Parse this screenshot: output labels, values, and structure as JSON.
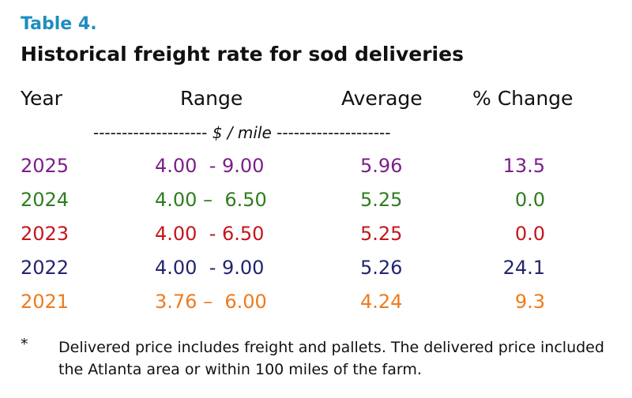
{
  "table": {
    "label": "Table 4.",
    "title": "Historical freight rate for sod deliveries",
    "headers": {
      "year": "Year",
      "range": "Range",
      "average": "Average",
      "change": "% Change"
    },
    "units": {
      "left_dashes": "--------------------",
      "unit": "$ / mile",
      "right_dashes": "--------------------"
    },
    "rows": [
      {
        "year": "2025",
        "range": "4.00  - 9.00",
        "average": "5.96",
        "change": "13.5",
        "color": "#7b1f8a"
      },
      {
        "year": "2024",
        "range": "4.00 –  6.50",
        "average": "5.25",
        "change": "0.0",
        "color": "#2f7d1f"
      },
      {
        "year": "2023",
        "range": "4.00  - 6.50",
        "average": "5.25",
        "change": "0.0",
        "color": "#c4161c"
      },
      {
        "year": "2022",
        "range": "4.00  - 9.00",
        "average": "5.26",
        "change": "24.1",
        "color": "#22256e"
      },
      {
        "year": "2021",
        "range": "3.76 –  6.00",
        "average": "4.24",
        "change": "9.3",
        "color": "#ee7b1d"
      }
    ],
    "footnote": {
      "mark": "*",
      "text": "Delivered price includes freight and pallets. The delivered price included the Atlanta area or within 100 miles of the farm."
    }
  }
}
